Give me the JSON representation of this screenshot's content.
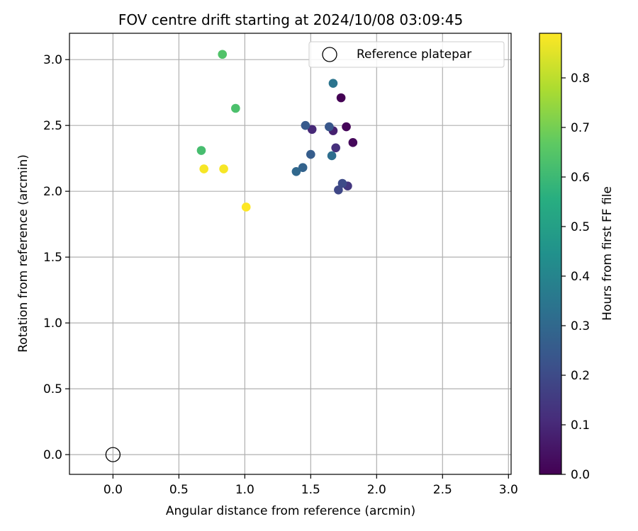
{
  "chart_data": {
    "type": "scatter",
    "title": "FOV centre drift starting at 2024/10/08 03:09:45",
    "xlabel": "Angular distance from reference (arcmin)",
    "ylabel": "Rotation from reference (arcmin)",
    "xlim": [
      -0.33,
      3.02
    ],
    "ylim": [
      -0.15,
      3.2
    ],
    "xticks": [
      0.0,
      0.5,
      1.0,
      1.5,
      2.0,
      2.5,
      3.0
    ],
    "xtick_labels": [
      "0.0",
      "0.5",
      "1.0",
      "1.5",
      "2.0",
      "2.5",
      "3.0"
    ],
    "yticks": [
      0.0,
      0.5,
      1.0,
      1.5,
      2.0,
      2.5,
      3.0
    ],
    "ytick_labels": [
      "0.0",
      "0.5",
      "1.0",
      "1.5",
      "2.0",
      "2.5",
      "3.0"
    ],
    "grid": true,
    "legend": {
      "placement": "upper-right",
      "label": "Reference platepar"
    },
    "reference": {
      "x": 0.0,
      "y": 0.0
    },
    "colorbar": {
      "label": "Hours from first FF file",
      "colormap": "viridis",
      "range": [
        0.0,
        0.89
      ],
      "ticks": [
        0.0,
        0.1,
        0.2,
        0.3,
        0.4,
        0.5,
        0.6,
        0.7,
        0.8
      ],
      "tick_labels": [
        "0.0",
        "0.1",
        "0.2",
        "0.3",
        "0.4",
        "0.5",
        "0.6",
        "0.7",
        "0.8"
      ]
    },
    "points": [
      {
        "x": 1.73,
        "y": 2.71,
        "hours": 0.0
      },
      {
        "x": 1.77,
        "y": 2.49,
        "hours": 0.01
      },
      {
        "x": 1.82,
        "y": 2.37,
        "hours": 0.02
      },
      {
        "x": 1.67,
        "y": 2.46,
        "hours": 0.08
      },
      {
        "x": 1.51,
        "y": 2.47,
        "hours": 0.1
      },
      {
        "x": 1.69,
        "y": 2.33,
        "hours": 0.12
      },
      {
        "x": 1.78,
        "y": 2.04,
        "hours": 0.14
      },
      {
        "x": 1.71,
        "y": 2.01,
        "hours": 0.19
      },
      {
        "x": 1.74,
        "y": 2.06,
        "hours": 0.2
      },
      {
        "x": 1.64,
        "y": 2.49,
        "hours": 0.24
      },
      {
        "x": 1.46,
        "y": 2.5,
        "hours": 0.25
      },
      {
        "x": 1.5,
        "y": 2.28,
        "hours": 0.26
      },
      {
        "x": 1.44,
        "y": 2.18,
        "hours": 0.28
      },
      {
        "x": 1.39,
        "y": 2.15,
        "hours": 0.3
      },
      {
        "x": 1.66,
        "y": 2.27,
        "hours": 0.32
      },
      {
        "x": 1.67,
        "y": 2.82,
        "hours": 0.34
      },
      {
        "x": 0.67,
        "y": 2.31,
        "hours": 0.62
      },
      {
        "x": 0.93,
        "y": 2.63,
        "hours": 0.63
      },
      {
        "x": 0.83,
        "y": 3.04,
        "hours": 0.64
      },
      {
        "x": 0.69,
        "y": 2.17,
        "hours": 0.88
      },
      {
        "x": 0.84,
        "y": 2.17,
        "hours": 0.88
      },
      {
        "x": 1.01,
        "y": 1.88,
        "hours": 0.89
      }
    ]
  }
}
